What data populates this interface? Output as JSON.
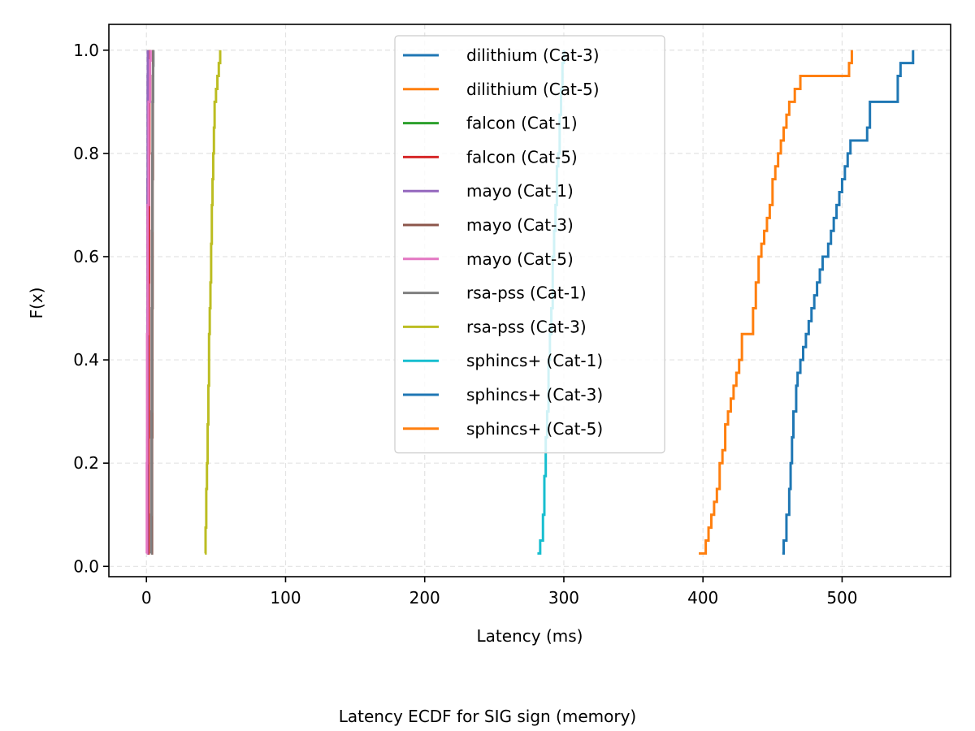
{
  "chart_data": {
    "type": "line",
    "title": "",
    "caption": "Latency ECDF for SIG sign (memory)",
    "xlabel": "Latency (ms)",
    "ylabel": "F(x)",
    "xlim": [
      -27,
      578
    ],
    "ylim": [
      -0.02,
      1.05
    ],
    "xticks": [
      0,
      100,
      200,
      300,
      400,
      500
    ],
    "yticks": [
      0.0,
      0.2,
      0.4,
      0.6,
      0.8,
      1.0
    ],
    "xtick_labels": [
      "0",
      "100",
      "200",
      "300",
      "400",
      "500"
    ],
    "ytick_labels": [
      "0.0",
      "0.2",
      "0.4",
      "0.6",
      "0.8",
      "1.0"
    ],
    "grid": true,
    "legend_position": "upper-center",
    "series": [
      {
        "name": "dilithium (Cat-3)",
        "color": "#1f77b4",
        "x": [
          0.8,
          0.9,
          1.0,
          1.1,
          1.2,
          1.3,
          1.4
        ],
        "y": [
          0.025,
          0.2,
          0.4,
          0.6,
          0.8,
          0.95,
          1.0
        ]
      },
      {
        "name": "dilithium (Cat-5)",
        "color": "#ff7f0e",
        "x": [
          1.0,
          1.1,
          1.2,
          1.4,
          1.5,
          1.7,
          1.8
        ],
        "y": [
          0.025,
          0.2,
          0.4,
          0.6,
          0.8,
          0.95,
          1.0
        ]
      },
      {
        "name": "falcon (Cat-1)",
        "color": "#2ca02c",
        "x": [
          0.6,
          0.7,
          0.8,
          0.9,
          1.0,
          1.1
        ],
        "y": [
          0.025,
          0.25,
          0.5,
          0.75,
          0.95,
          1.0
        ]
      },
      {
        "name": "falcon (Cat-5)",
        "color": "#d62728",
        "x": [
          1.4,
          1.5,
          1.7,
          1.9,
          2.1,
          2.3
        ],
        "y": [
          0.025,
          0.25,
          0.55,
          0.8,
          0.97,
          1.0
        ]
      },
      {
        "name": "mayo (Cat-1)",
        "color": "#9467bd",
        "x": [
          0.5,
          0.6,
          0.7,
          0.8,
          0.9,
          1.0
        ],
        "y": [
          0.025,
          0.25,
          0.5,
          0.75,
          0.95,
          1.0
        ]
      },
      {
        "name": "mayo (Cat-3)",
        "color": "#8c564b",
        "x": [
          3.8,
          4.0,
          4.2,
          4.4,
          4.6,
          4.8
        ],
        "y": [
          0.025,
          0.25,
          0.5,
          0.75,
          0.95,
          1.0
        ]
      },
      {
        "name": "mayo (Cat-5)",
        "color": "#e377c2",
        "x": [
          0.2,
          0.3,
          0.5,
          0.9,
          1.6,
          2.6,
          3.0
        ],
        "y": [
          0.025,
          0.2,
          0.45,
          0.7,
          0.9,
          0.98,
          1.0
        ]
      },
      {
        "name": "rsa-pss (Cat-1)",
        "color": "#7f7f7f",
        "x": [
          3.2,
          3.4,
          3.6,
          3.8,
          4.0,
          4.2,
          4.4,
          4.8,
          5.0
        ],
        "y": [
          0.025,
          0.1,
          0.3,
          0.5,
          0.65,
          0.8,
          0.9,
          0.97,
          1.0
        ]
      },
      {
        "name": "rsa-pss (Cat-3)",
        "color": "#bcbd22",
        "x": [
          42,
          42.5,
          43,
          43.5,
          44,
          44.5,
          45,
          45.5,
          46,
          46.5,
          47,
          47.5,
          48,
          48.5,
          49,
          50,
          51,
          52,
          53
        ],
        "y": [
          0.025,
          0.075,
          0.15,
          0.2,
          0.275,
          0.35,
          0.45,
          0.5,
          0.55,
          0.625,
          0.7,
          0.75,
          0.8,
          0.85,
          0.9,
          0.925,
          0.95,
          0.975,
          1.0
        ]
      },
      {
        "name": "sphincs+ (Cat-1)",
        "color": "#17becf",
        "x": [
          281,
          283,
          285,
          286,
          287,
          288,
          289,
          290,
          291,
          292,
          293,
          294,
          295,
          296,
          297,
          298,
          299,
          300
        ],
        "y": [
          0.025,
          0.05,
          0.1,
          0.175,
          0.25,
          0.3,
          0.4,
          0.45,
          0.5,
          0.6,
          0.65,
          0.7,
          0.775,
          0.8,
          0.875,
          0.925,
          0.975,
          1.0
        ]
      },
      {
        "name": "sphincs+ (Cat-3)",
        "color": "#1f77b4",
        "x": [
          457,
          458,
          460,
          462,
          463,
          464,
          465,
          467,
          468,
          470,
          472,
          474,
          476,
          478,
          480,
          482,
          484,
          486,
          488,
          490,
          492,
          494,
          496,
          498,
          500,
          502,
          504,
          506,
          518,
          520,
          537,
          540,
          542,
          550,
          551
        ],
        "y": [
          0.025,
          0.05,
          0.1,
          0.15,
          0.2,
          0.25,
          0.3,
          0.35,
          0.375,
          0.4,
          0.425,
          0.45,
          0.475,
          0.5,
          0.525,
          0.55,
          0.575,
          0.6,
          0.6,
          0.625,
          0.65,
          0.675,
          0.7,
          0.725,
          0.75,
          0.775,
          0.8,
          0.825,
          0.85,
          0.9,
          0.9,
          0.95,
          0.975,
          0.975,
          1.0
        ]
      },
      {
        "name": "sphincs+ (Cat-5)",
        "color": "#ff7f0e",
        "x": [
          397,
          402,
          404,
          406,
          408,
          410,
          412,
          414,
          416,
          418,
          420,
          422,
          424,
          426,
          428,
          432,
          436,
          438,
          440,
          442,
          444,
          446,
          448,
          450,
          452,
          454,
          456,
          458,
          460,
          462,
          466,
          470,
          505,
          507
        ],
        "y": [
          0.025,
          0.05,
          0.075,
          0.1,
          0.125,
          0.15,
          0.2,
          0.225,
          0.275,
          0.3,
          0.325,
          0.35,
          0.375,
          0.4,
          0.45,
          0.45,
          0.5,
          0.55,
          0.6,
          0.625,
          0.65,
          0.675,
          0.7,
          0.75,
          0.775,
          0.8,
          0.825,
          0.85,
          0.875,
          0.9,
          0.925,
          0.95,
          0.975,
          1.0
        ]
      }
    ]
  }
}
